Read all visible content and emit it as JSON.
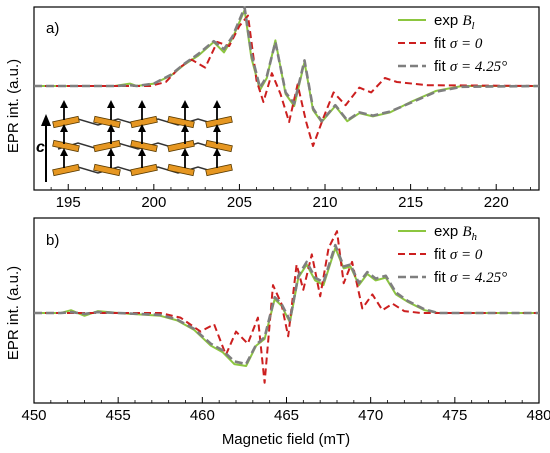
{
  "y_axis_label": "EPR int. (a.u.)",
  "x_axis_label": "Magnetic field (mT)",
  "colors": {
    "exp": "#8cc63f",
    "fit0": "#cc1f1f",
    "fit425": "#7f7f7f",
    "crystal_bar": "#e69722",
    "arrow": "#000000"
  },
  "inset": {
    "axis_label": "c"
  },
  "chart_data": [
    {
      "type": "line",
      "panel_label": "a)",
      "xlim": [
        193,
        222.5
      ],
      "x_ticks": [
        195,
        200,
        205,
        210,
        215,
        220
      ],
      "grid": false,
      "legend_position": "top-right",
      "legend": [
        {
          "key": "exp",
          "text": "exp",
          "math": "B",
          "sub": "l"
        },
        {
          "key": "fit0",
          "text": "fit",
          "math": "σ = 0",
          "sub": ""
        },
        {
          "key": "fit425",
          "text": "fit",
          "math": "σ = 4.25°",
          "sub": ""
        }
      ],
      "baseline": 0,
      "series": [
        {
          "key": "exp",
          "style": "solid",
          "x": [
            193,
            197.7,
            198.6,
            199,
            200,
            201,
            201.8,
            202.6,
            203.5,
            204.1,
            204.6,
            205.3,
            205.7,
            206.2,
            206.6,
            207.1,
            207.7,
            208.2,
            208.8,
            209.3,
            209.8,
            210.6,
            211.3,
            212.0,
            212.8,
            213.8,
            215.0,
            216.5,
            218,
            222.5
          ],
          "y": [
            0,
            0,
            0.03,
            0,
            0.03,
            0.13,
            0.27,
            0.38,
            0.55,
            0.42,
            0.6,
            0.95,
            0.35,
            -0.05,
            0.1,
            0.57,
            -0.1,
            -0.25,
            0.3,
            -0.3,
            -0.45,
            -0.25,
            -0.44,
            -0.34,
            -0.38,
            -0.33,
            -0.2,
            -0.06,
            0,
            0
          ]
        },
        {
          "key": "fit0",
          "style": "dashed",
          "x": [
            193,
            199.8,
            200.7,
            201.5,
            202.2,
            203,
            203.7,
            204.4,
            205.0,
            205.5,
            206.0,
            206.4,
            206.9,
            207.4,
            207.9,
            208.4,
            208.9,
            209.3,
            209.9,
            210.5,
            211.2,
            212.0,
            212.7,
            213.5,
            214.2,
            216,
            222.5
          ],
          "y": [
            0,
            0,
            0.05,
            0.23,
            0.33,
            0.23,
            0.55,
            0.5,
            0.75,
            0.88,
            0.07,
            -0.2,
            0.16,
            -0.1,
            -0.45,
            0.02,
            -0.45,
            -0.75,
            -0.4,
            -0.08,
            -0.24,
            -0.02,
            -0.08,
            0.1,
            0.05,
            0.01,
            0
          ]
        },
        {
          "key": "fit425",
          "style": "dashed",
          "x": [
            193,
            197.7,
            198.6,
            199,
            200,
            201,
            201.8,
            202.6,
            203.5,
            204.1,
            204.6,
            205.3,
            205.7,
            206.2,
            206.6,
            207.1,
            207.7,
            208.2,
            208.8,
            209.3,
            209.8,
            210.6,
            211.3,
            212.0,
            212.8,
            213.8,
            215.0,
            216.5,
            218,
            222.5
          ],
          "y": [
            0,
            0,
            0.01,
            0,
            0.03,
            0.14,
            0.28,
            0.4,
            0.56,
            0.46,
            0.62,
            0.98,
            0.4,
            -0.02,
            0.12,
            0.55,
            -0.08,
            -0.22,
            0.32,
            -0.28,
            -0.44,
            -0.24,
            -0.43,
            -0.33,
            -0.37,
            -0.32,
            -0.21,
            -0.07,
            -0.01,
            0
          ]
        }
      ]
    },
    {
      "type": "line",
      "panel_label": "b)",
      "xlim": [
        450,
        480
      ],
      "x_ticks": [
        450,
        455,
        460,
        465,
        470,
        475,
        480
      ],
      "xlabel": "Magnetic field (mT)",
      "grid": false,
      "legend_position": "top-right",
      "legend": [
        {
          "key": "exp",
          "text": "exp",
          "math": "B",
          "sub": "h"
        },
        {
          "key": "fit0",
          "text": "fit",
          "math": "σ = 0",
          "sub": ""
        },
        {
          "key": "fit425",
          "text": "fit",
          "math": "σ = 4.25°",
          "sub": ""
        }
      ],
      "baseline": 0,
      "series": [
        {
          "key": "exp",
          "style": "solid",
          "x": [
            450,
            451.6,
            452.2,
            453.0,
            453.8,
            455,
            457.5,
            458.5,
            459.5,
            460.5,
            461.2,
            461.9,
            462.6,
            463.2,
            463.7,
            464.3,
            464.7,
            465.2,
            465.7,
            466.2,
            466.7,
            467.2,
            467.9,
            468.4,
            468.8,
            469.3,
            469.8,
            470.3,
            470.9,
            471.5,
            472.2,
            473.2,
            474,
            480
          ],
          "y": [
            0,
            0,
            0.03,
            -0.03,
            0.02,
            0,
            -0.03,
            -0.08,
            -0.18,
            -0.35,
            -0.42,
            -0.55,
            -0.57,
            -0.35,
            -0.28,
            0.15,
            0.08,
            -0.1,
            0.38,
            0.52,
            0.35,
            0.3,
            0.7,
            0.48,
            0.5,
            0.3,
            0.42,
            0.35,
            0.38,
            0.2,
            0.12,
            0.03,
            0,
            0
          ]
        },
        {
          "key": "fit0",
          "style": "dashed",
          "x": [
            450,
            457.5,
            458.7,
            459.9,
            460.7,
            461.4,
            462.0,
            462.7,
            463.3,
            463.7,
            464.2,
            464.7,
            465.1,
            465.6,
            466.0,
            466.5,
            467.0,
            467.5,
            468.0,
            468.4,
            468.9,
            469.5,
            470.1,
            470.7,
            471.3,
            472.0,
            473,
            480
          ],
          "y": [
            0,
            0,
            -0.05,
            -0.2,
            -0.12,
            -0.45,
            -0.2,
            -0.33,
            -0.05,
            -0.75,
            0.3,
            0.1,
            -0.25,
            0.52,
            0.25,
            0.63,
            0.18,
            0.7,
            0.88,
            0.32,
            0.55,
            0.05,
            0.2,
            0.03,
            0.1,
            0.02,
            0,
            0
          ]
        },
        {
          "key": "fit425",
          "style": "dashed",
          "x": [
            450,
            451.6,
            452.2,
            453.0,
            453.8,
            455,
            457.5,
            458.5,
            459.5,
            460.5,
            461.2,
            461.9,
            462.6,
            463.2,
            463.7,
            464.3,
            464.7,
            465.2,
            465.7,
            466.2,
            466.7,
            467.2,
            467.9,
            468.4,
            468.8,
            469.3,
            469.8,
            470.3,
            470.9,
            471.5,
            472.2,
            473.2,
            474,
            480
          ],
          "y": [
            0,
            0,
            0.01,
            -0.01,
            0.01,
            0,
            -0.02,
            -0.07,
            -0.17,
            -0.33,
            -0.4,
            -0.52,
            -0.55,
            -0.34,
            -0.26,
            0.17,
            0.1,
            -0.08,
            0.4,
            0.55,
            0.38,
            0.33,
            0.73,
            0.5,
            0.52,
            0.32,
            0.44,
            0.37,
            0.4,
            0.22,
            0.13,
            0.04,
            0,
            0
          ]
        }
      ]
    }
  ]
}
